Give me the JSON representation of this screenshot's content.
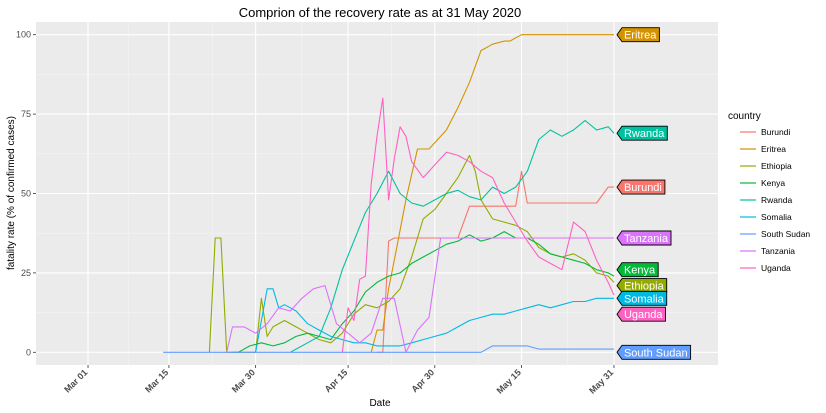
{
  "chart_data": {
    "type": "line",
    "title": "Comprion of the recovery rate as at 31 May 2020",
    "xlabel": "Date",
    "ylabel": "fatality rate (% of confirmed cases)",
    "legend_title": "country",
    "legend_position": "right",
    "grid": true,
    "x_tick_labels": [
      "Mar 01",
      "Mar 15",
      "Mar 30",
      "Apr 15",
      "Apr 30",
      "May 15",
      "May 31"
    ],
    "x_tick_days": [
      0,
      14,
      29,
      45,
      60,
      75,
      91
    ],
    "xlim_days": [
      -9,
      109
    ],
    "y_ticks": [
      0,
      25,
      50,
      75,
      100
    ],
    "y_tick_labels": [
      "0",
      "25",
      "50",
      "75",
      "100"
    ],
    "ylim": [
      -4,
      104
    ],
    "colors": {
      "Burundi": "#F8766D",
      "Eritrea": "#D39200",
      "Ethiopia": "#93AA00",
      "Kenya": "#00BA38",
      "Rwanda": "#00C19F",
      "Somalia": "#00B9E3",
      "South Sudan": "#619CFF",
      "Tanzania": "#DB72FB",
      "Uganda": "#FF61C3"
    },
    "series": [
      {
        "name": "Burundi",
        "end_label": "Burundi",
        "label_y": 52,
        "x": [
          50,
          51,
          52,
          53,
          54,
          56,
          58,
          60,
          62,
          64,
          66,
          68,
          70,
          72,
          74,
          75,
          76,
          78,
          80,
          82,
          84,
          86,
          88,
          90,
          91
        ],
        "y": [
          0,
          0,
          35,
          36,
          36,
          36,
          36,
          36,
          36,
          36,
          46,
          46,
          46,
          46,
          46,
          57,
          47,
          47,
          47,
          47,
          47,
          47,
          47,
          52,
          52
        ]
      },
      {
        "name": "Eritrea",
        "end_label": "Eritrea",
        "label_y": 100,
        "x": [
          49,
          50,
          51,
          52,
          53,
          55,
          57,
          59,
          60,
          62,
          64,
          66,
          68,
          70,
          72,
          73,
          75,
          77,
          79,
          81,
          83,
          85,
          87,
          89,
          91
        ],
        "y": [
          0,
          7,
          7,
          20,
          29,
          48,
          64,
          64,
          66,
          70,
          77,
          85,
          95,
          97,
          98,
          98,
          100,
          100,
          100,
          100,
          100,
          100,
          100,
          100,
          100
        ]
      },
      {
        "name": "Ethiopia",
        "end_label": "Ethiopia",
        "label_y": 21,
        "x": [
          21,
          22,
          23,
          24,
          25,
          27,
          29,
          30,
          31,
          32,
          34,
          36,
          38,
          40,
          42,
          44,
          46,
          48,
          50,
          52,
          54,
          56,
          58,
          60,
          62,
          64,
          66,
          67,
          68,
          70,
          72,
          74,
          76,
          78,
          80,
          82,
          84,
          86,
          88,
          90,
          91
        ],
        "y": [
          0,
          36,
          36,
          0,
          0,
          0,
          0,
          17,
          5,
          8,
          10,
          8,
          6,
          4,
          3,
          6,
          12,
          15,
          14,
          16,
          20,
          30,
          42,
          45,
          50,
          55,
          62,
          57,
          48,
          42,
          41,
          40,
          38,
          33,
          31,
          30,
          31,
          29,
          25,
          24,
          22
        ]
      },
      {
        "name": "Kenya",
        "end_label": "Kenya",
        "label_y": 26,
        "x": [
          25,
          26,
          28,
          30,
          32,
          34,
          36,
          38,
          40,
          42,
          44,
          46,
          48,
          50,
          52,
          54,
          56,
          58,
          60,
          62,
          64,
          66,
          68,
          70,
          72,
          74,
          76,
          78,
          80,
          82,
          84,
          86,
          88,
          90,
          91
        ],
        "y": [
          0,
          0,
          2,
          3,
          2,
          3,
          5,
          6,
          5,
          4,
          9,
          13,
          19,
          22,
          24,
          25,
          28,
          30,
          32,
          34,
          35,
          37,
          35,
          36,
          38,
          36,
          36,
          34,
          31,
          30,
          29,
          28,
          26,
          25,
          24
        ]
      },
      {
        "name": "Rwanda",
        "end_label": "Rwanda",
        "label_y": 69,
        "x": [
          35,
          36,
          38,
          40,
          42,
          44,
          46,
          48,
          50,
          52,
          54,
          56,
          58,
          60,
          62,
          64,
          66,
          68,
          70,
          72,
          74,
          76,
          78,
          80,
          82,
          84,
          86,
          88,
          90,
          91
        ],
        "y": [
          0,
          1,
          3,
          5,
          14,
          26,
          35,
          44,
          50,
          57,
          50,
          47,
          46,
          48,
          50,
          51,
          49,
          48,
          52,
          50,
          52,
          57,
          67,
          70,
          68,
          70,
          73,
          70,
          71,
          69
        ]
      },
      {
        "name": "Somalia",
        "end_label": "Somalia",
        "label_y": 17,
        "x": [
          29,
          31,
          32,
          33,
          34,
          35,
          36,
          38,
          40,
          42,
          44,
          46,
          48,
          50,
          52,
          54,
          56,
          58,
          60,
          62,
          64,
          66,
          68,
          70,
          72,
          74,
          76,
          78,
          80,
          82,
          84,
          86,
          88,
          90,
          91
        ],
        "y": [
          0,
          20,
          20,
          14,
          15,
          14,
          13,
          9,
          7,
          5,
          4,
          3,
          3,
          2,
          2,
          2,
          3,
          4,
          5,
          6,
          8,
          10,
          11,
          12,
          12,
          13,
          14,
          15,
          14,
          15,
          16,
          16,
          17,
          17,
          17
        ]
      },
      {
        "name": "South Sudan",
        "end_label": "South Sudan",
        "label_y": 0,
        "x": [
          13,
          20,
          30,
          40,
          50,
          55,
          60,
          62,
          64,
          66,
          68,
          70,
          72,
          74,
          76,
          78,
          80,
          82,
          84,
          86,
          88,
          90,
          91
        ],
        "y": [
          0,
          0,
          0,
          0,
          0,
          0,
          0,
          0,
          0,
          0,
          0,
          2,
          2,
          2,
          2,
          1,
          1,
          1,
          1,
          1,
          1,
          1,
          1
        ]
      },
      {
        "name": "Tanzania",
        "end_label": "Tanzania",
        "label_y": 36,
        "x": [
          24,
          25,
          27,
          29,
          31,
          33,
          35,
          37,
          39,
          41,
          43,
          45,
          47,
          49,
          51,
          53,
          55,
          57,
          59,
          61,
          63,
          65,
          67,
          69,
          71,
          73,
          75,
          77,
          79,
          81,
          83,
          85,
          87,
          89,
          91
        ],
        "y": [
          0,
          8,
          8,
          6,
          9,
          14,
          13,
          17,
          20,
          21,
          9,
          6,
          3,
          6,
          17,
          17,
          0,
          7,
          11,
          36,
          36,
          36,
          36,
          36,
          36,
          36,
          36,
          36,
          36,
          36,
          36,
          36,
          36,
          36,
          36
        ]
      },
      {
        "name": "Uganda",
        "end_label": "Uganda",
        "label_y": 12,
        "x": [
          44,
          45,
          46,
          47,
          48,
          49,
          50,
          51,
          52,
          53,
          54,
          55,
          56,
          58,
          60,
          62,
          64,
          66,
          68,
          70,
          72,
          74,
          76,
          78,
          80,
          82,
          84,
          86,
          88,
          90,
          91
        ],
        "y": [
          0,
          14,
          10,
          23,
          24,
          53,
          68,
          80,
          48,
          61,
          71,
          68,
          60,
          55,
          59,
          63,
          62,
          60,
          57,
          55,
          47,
          41,
          35,
          30,
          28,
          26,
          41,
          38,
          29,
          22,
          18
        ]
      }
    ]
  }
}
